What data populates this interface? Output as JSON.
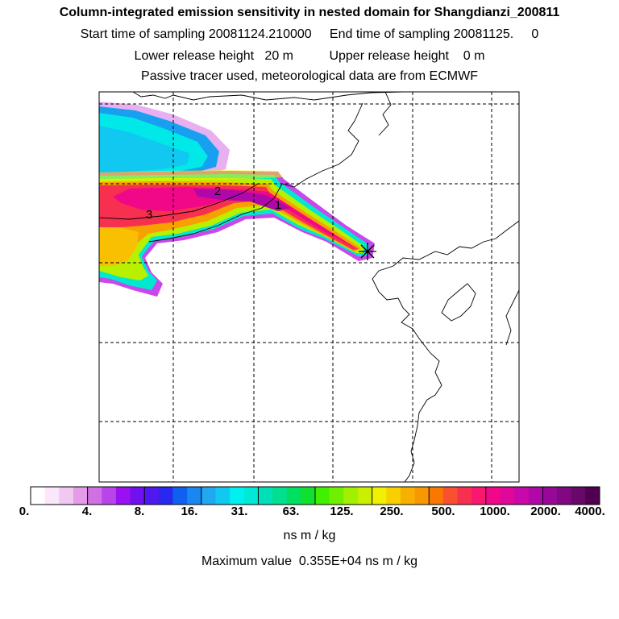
{
  "header": {
    "title": "Column-integrated emission sensitivity in nested domain for Shangdianzi_200811",
    "line2": "Start time of sampling 20081124.210000     End time of sampling 20081125.     0",
    "line3": "Lower release height   20 m          Upper release height    0 m",
    "line4": "Passive tracer used, meteorological data are from ECMWF"
  },
  "map": {
    "station_marker": "star-marker",
    "trajectory_labels": [
      "1",
      "2",
      "3"
    ]
  },
  "colorbar": {
    "labels": [
      "0.",
      "4.",
      "8.",
      "16.",
      "31.",
      "63.",
      "125.",
      "250.",
      "500.",
      "1000.",
      "2000.",
      "4000."
    ],
    "colors": [
      "#ffffff",
      "#fbe6fb",
      "#f1c8f1",
      "#e59ce8",
      "#d070e4",
      "#b844ec",
      "#9a10f0",
      "#7010f0",
      "#5018f0",
      "#2828f0",
      "#1060f0",
      "#1888f0",
      "#20a8f0",
      "#10c8f0",
      "#00f0f0",
      "#00e8d8",
      "#00e0b8",
      "#00e090",
      "#00e060",
      "#10e030",
      "#40f000",
      "#70f000",
      "#a0f000",
      "#c8f000",
      "#f0f000",
      "#f8d000",
      "#f8b000",
      "#f89800",
      "#f87800",
      "#f85030",
      "#f83050",
      "#f81870",
      "#f00888",
      "#e00898",
      "#c808a8",
      "#b008a8",
      "#980898",
      "#800880",
      "#680868",
      "#500050"
    ],
    "units": "ns m / kg"
  },
  "footer": {
    "max_value": "Maximum value  0.355E+04 ns m / kg"
  }
}
